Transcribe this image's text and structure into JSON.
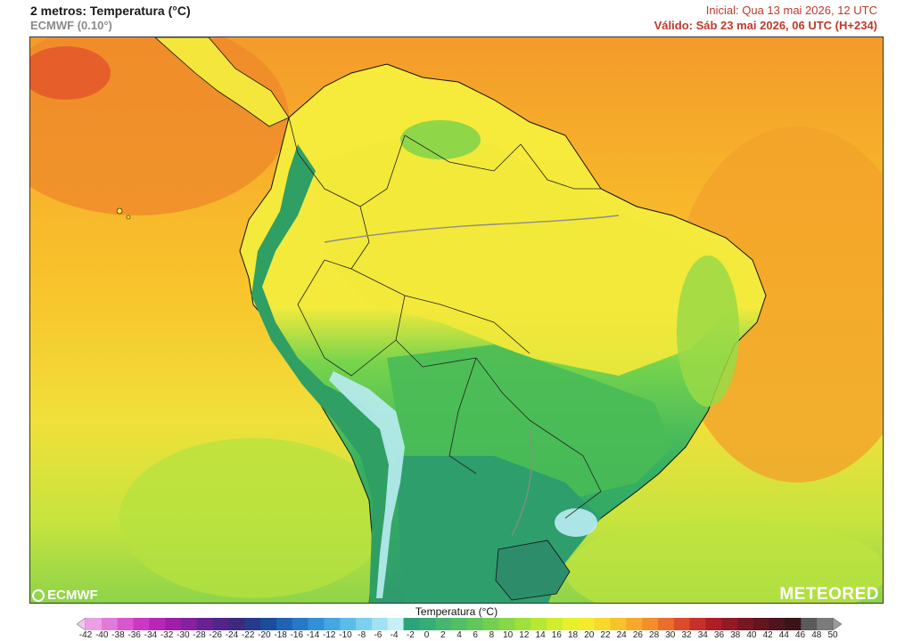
{
  "header": {
    "title": "2 metros: Temperatura (°C)",
    "subtitle": "ECMWF (0.10°)",
    "initial": "Inicial: Qua 13 mai 2026, 12 UTC",
    "valid": "Válido: Sáb 23 mai 2026, 06 UTC (H+234)"
  },
  "logos": {
    "left": "ECMWF",
    "right": "METEORED"
  },
  "colorbar": {
    "title": "Temperatura (°C)",
    "ticks": [
      "-42",
      "-40",
      "-38",
      "-36",
      "-34",
      "-32",
      "-30",
      "-28",
      "-26",
      "-24",
      "-22",
      "-20",
      "-18",
      "-16",
      "-14",
      "-12",
      "-10",
      "-8",
      "-6",
      "-4",
      "-2",
      "0",
      "2",
      "4",
      "6",
      "8",
      "10",
      "12",
      "14",
      "16",
      "18",
      "20",
      "22",
      "24",
      "26",
      "28",
      "30",
      "32",
      "34",
      "36",
      "38",
      "40",
      "42",
      "44",
      "46",
      "48",
      "50"
    ],
    "colors": [
      "#f4c6ee",
      "#ec9fe4",
      "#e27ad9",
      "#d957ce",
      "#cc37c4",
      "#b826b5",
      "#a01fa8",
      "#86209e",
      "#6a2293",
      "#532489",
      "#3d2a7f",
      "#283a8a",
      "#1d4c9b",
      "#1f63b3",
      "#2779c8",
      "#3390d7",
      "#45a6e2",
      "#5bbcea",
      "#7ccfef",
      "#a2e0f4",
      "#c8eff8",
      "#2aa57a",
      "#36ad76",
      "#45b56f",
      "#54be66",
      "#63c65c",
      "#74cf51",
      "#87d846",
      "#9ee13b",
      "#b7e833",
      "#d0ee2e",
      "#e6f12c",
      "#f5ea2c",
      "#f8d92b",
      "#f8c22b",
      "#f6a92b",
      "#f28f2b",
      "#ea6f2a",
      "#dc4c2a",
      "#c8302a",
      "#ae1e27",
      "#921a25",
      "#781722",
      "#62161f",
      "#4d151c",
      "#3a1418",
      "#5a5a5a",
      "#7b7b7b",
      "#9c9c9c"
    ]
  },
  "map": {
    "ocean_colors": [
      "#f29a2a",
      "#f7b52a",
      "#f9cd2c",
      "#efe53a",
      "#c9e63f",
      "#8fd44a"
    ],
    "land_colors": [
      "#f5e93c",
      "#d2ea3c",
      "#7fd64b",
      "#3fbf5b",
      "#2fa56b",
      "#3e9a72",
      "#b9ecf2"
    ]
  }
}
